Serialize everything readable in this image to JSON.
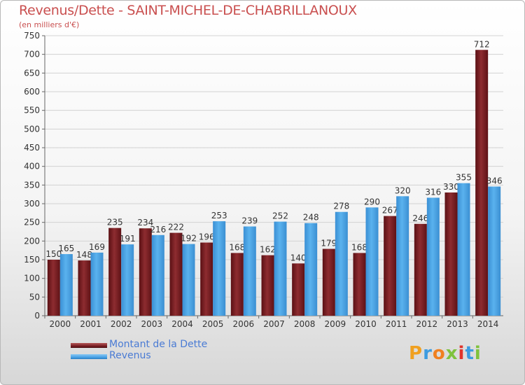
{
  "title": "Revenus/Dette - SAINT-MICHEL-DE-CHABRILLANOUX",
  "subtitle": "(en milliers d'€)",
  "legend": {
    "debt_label": "Montant de la Dette",
    "revenue_label": "Revenus"
  },
  "logo": {
    "letters": [
      "P",
      "r",
      "o",
      "x",
      "i",
      "t",
      "i"
    ],
    "colors": [
      "#f0a020",
      "#3c9be0",
      "#f08020",
      "#7fc23c",
      "#e0342c",
      "#3c9be0",
      "#7fc23c"
    ]
  },
  "colors": {
    "debt": "#7a1f24",
    "revenue": "#4aa3e6",
    "title": "#c94f4f",
    "legend_text": "#4a7bd4"
  },
  "chart_data": {
    "type": "bar",
    "categories": [
      "2000",
      "2001",
      "2002",
      "2003",
      "2004",
      "2005",
      "2006",
      "2007",
      "2008",
      "2009",
      "2010",
      "2011",
      "2012",
      "2013",
      "2014"
    ],
    "series": [
      {
        "name": "Montant de la Dette",
        "values": [
          150,
          148,
          235,
          234,
          222,
          196,
          168,
          162,
          140,
          179,
          168,
          267,
          246,
          330,
          712
        ]
      },
      {
        "name": "Revenus",
        "values": [
          165,
          169,
          191,
          216,
          192,
          253,
          239,
          252,
          248,
          278,
          290,
          320,
          316,
          355,
          346
        ]
      }
    ],
    "ylim": [
      0,
      750
    ],
    "yticks": [
      0,
      50,
      100,
      150,
      200,
      250,
      300,
      350,
      400,
      450,
      500,
      550,
      600,
      650,
      700,
      750
    ],
    "grid": true,
    "legend_position": "bottom-left"
  }
}
